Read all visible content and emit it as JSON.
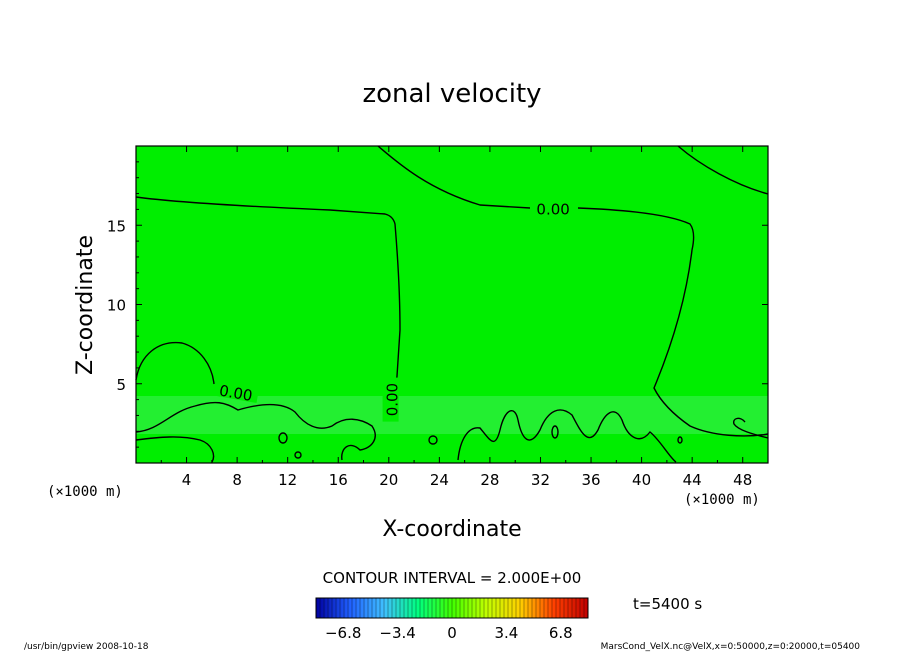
{
  "chart_data": {
    "type": "contour",
    "title": "zonal velocity",
    "xlabel": "X-coordinate",
    "ylabel": "Z-coordinate",
    "x_unit_left": "(×1000 m)",
    "x_unit_right": "(×1000 m)",
    "xlim": [
      0,
      50
    ],
    "ylim": [
      0,
      20
    ],
    "x_ticks": [
      4,
      8,
      12,
      16,
      20,
      24,
      28,
      32,
      36,
      40,
      44,
      48
    ],
    "y_ticks": [
      5,
      10,
      15
    ],
    "fill_color": "#00ee00",
    "contour_labels": [
      {
        "text": "0.00",
        "x": 33.0,
        "z": 16.0,
        "rotate": 0
      },
      {
        "text": "0.00",
        "x": 7.9,
        "z": 4.4,
        "rotate": 10
      },
      {
        "text": "0.00",
        "x": 20.3,
        "z": 4.0,
        "rotate": -90
      }
    ],
    "contour_interval": "CONTOUR INTERVAL = 2.000E+00",
    "time_label": "t=5400 s",
    "colorbar": {
      "ticks": [
        -6.8,
        -3.4,
        0,
        3.4,
        6.8
      ],
      "min": -8.5,
      "max": 8.5,
      "stops": [
        "#0000a0",
        "#2060ff",
        "#40c0ff",
        "#00ff80",
        "#40ff00",
        "#c0ff00",
        "#ffd000",
        "#ff4000",
        "#c00000"
      ]
    }
  },
  "footer": {
    "left": "/usr/bin/gpview   2008-10-18",
    "right": "MarsCond_VelX.nc@VelX,x=0:50000,z=0:20000,t=05400"
  }
}
